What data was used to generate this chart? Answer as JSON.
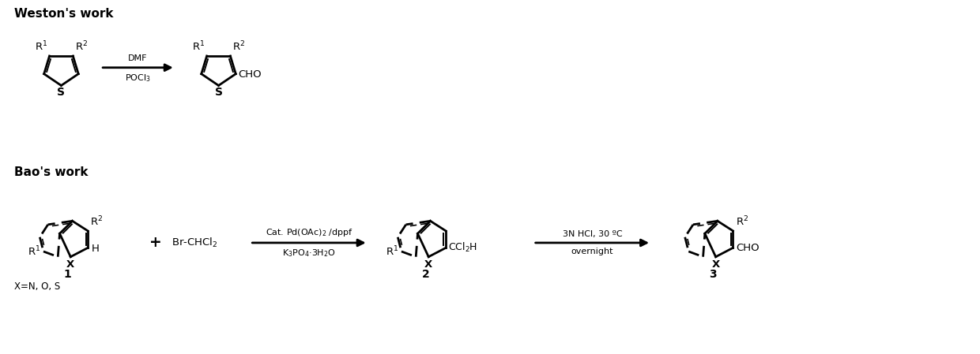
{
  "background_color": "#ffffff",
  "fig_width": 12.4,
  "fig_height": 4.49,
  "title_weston": "Weston's work",
  "title_bao": "Bao's work",
  "arrow1_label_top": "DMF",
  "arrow1_label_bot": "POCl$_3$",
  "arrow2_label_top": "Cat. Pd(OAc)$_2$ /dppf",
  "arrow2_label_bot": "K$_3$PO$_4$·3H$_2$O",
  "arrow3_label_top": "3N HCl, 30 ºC",
  "arrow3_label_bot": "overnight",
  "plus_sign": "+",
  "br_chcl2": "Br-CHCl$_2$",
  "ccl2h": "CCl$_2$H",
  "cho": "CHO",
  "x_label": "X",
  "x_eq": "X=N, O, S",
  "label1": "1",
  "label2": "2",
  "label3": "3",
  "h_label": "H",
  "r1": "R$^1$",
  "r2": "R$^2$"
}
